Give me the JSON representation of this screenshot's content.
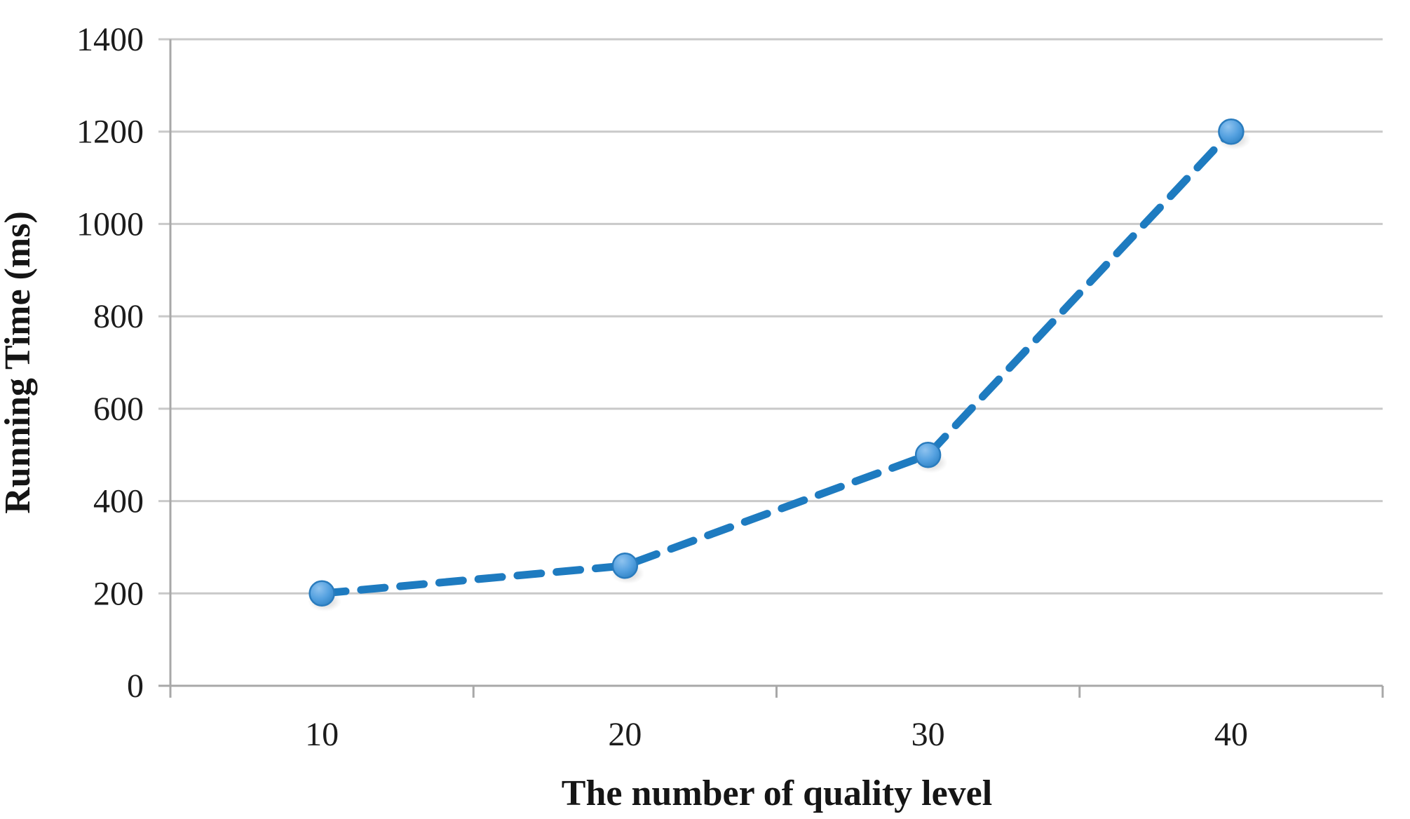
{
  "chart_data": {
    "type": "line",
    "title": "",
    "xlabel": "The number of quality level",
    "ylabel": "Running Time (ms)",
    "x": [
      10,
      20,
      30,
      40
    ],
    "xticklabels": [
      "10",
      "20",
      "30",
      "40"
    ],
    "series": [
      {
        "values": [
          200,
          260,
          500,
          1200
        ],
        "line_style": "dashed",
        "marker": "circle"
      }
    ],
    "ylim": [
      0,
      1400
    ],
    "yticks": [
      0,
      200,
      400,
      600,
      800,
      1000,
      1200,
      1400
    ],
    "grid": "horizontal",
    "legend": "none",
    "colors": {
      "line": "#1E7BC0",
      "marker_fill": "#55A1E0",
      "marker_highlight": "#8FC3EF",
      "marker_edge": "#2A7CBE",
      "gridline": "#C9C9C9",
      "axis": "#A8A8A8",
      "text": "#1C1C1C",
      "background": "#FFFFFF"
    }
  }
}
